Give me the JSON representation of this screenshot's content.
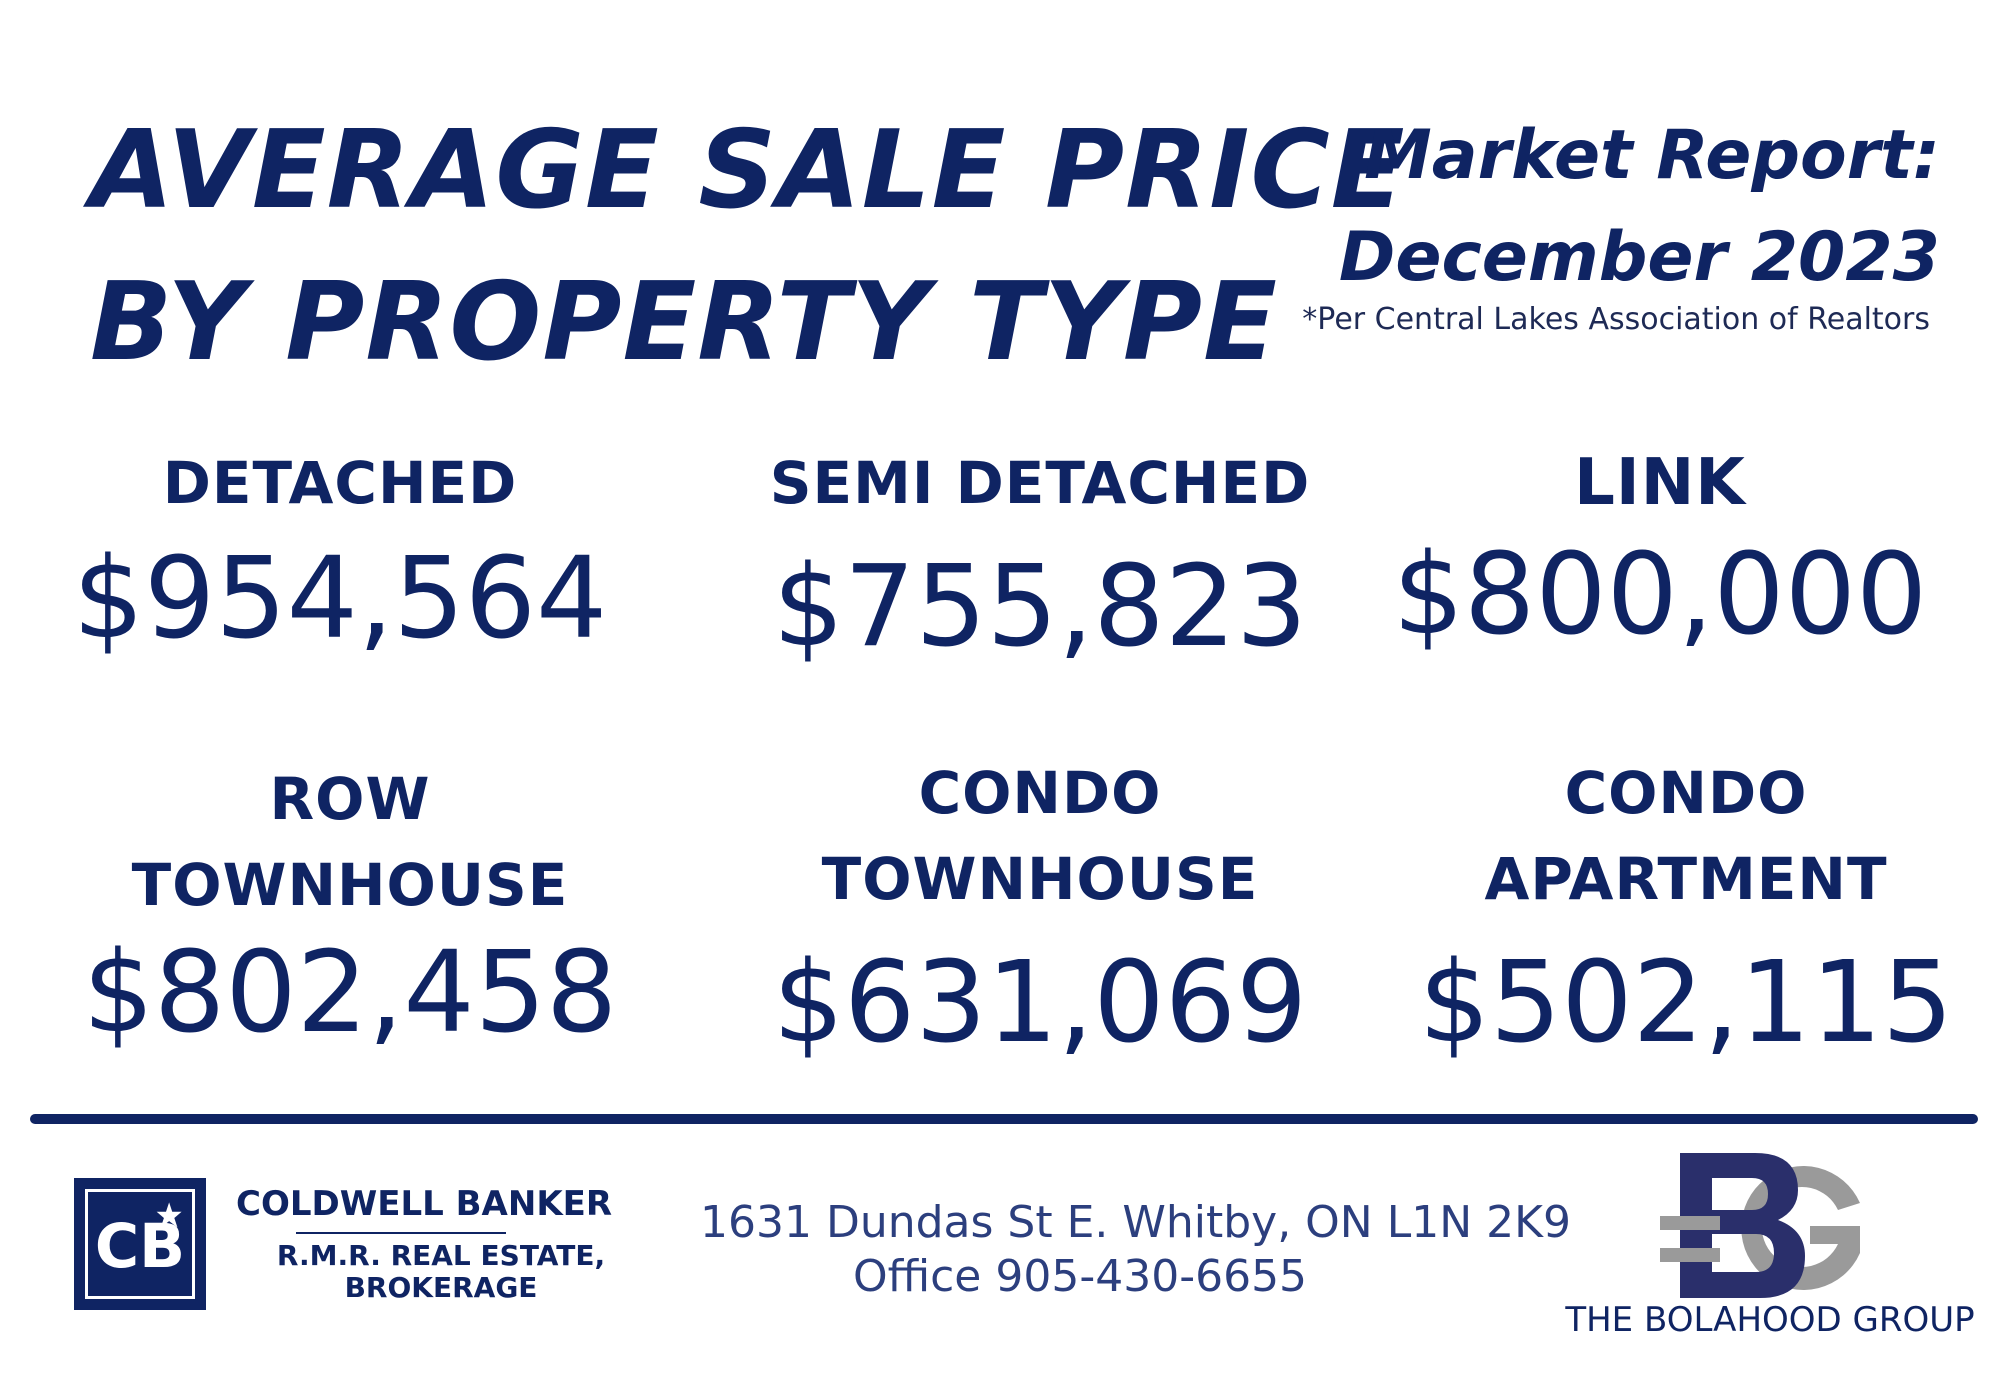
{
  "header": {
    "title_line1": "AVERAGE SALE PRICE",
    "title_line2": "BY PROPERTY TYPE",
    "report_line1": "Market Report:",
    "report_line2": "December 2023",
    "source_note": "*Per Central Lakes Association of Realtors"
  },
  "property_types": [
    {
      "label_line1": "DETACHED",
      "label_line2": "",
      "price": "$954,564"
    },
    {
      "label_line1": "SEMI DETACHED",
      "label_line2": "",
      "price": "$755,823"
    },
    {
      "label_line1": "LINK",
      "label_line2": "",
      "price": "$800,000"
    },
    {
      "label_line1": "ROW",
      "label_line2": "TOWNHOUSE",
      "price": "$802,458"
    },
    {
      "label_line1": "CONDO",
      "label_line2": "TOWNHOUSE",
      "price": "$631,069"
    },
    {
      "label_line1": "CONDO",
      "label_line2": "APARTMENT",
      "price": "$502,115"
    }
  ],
  "footer": {
    "brokerage_name": "COLDWELL BANKER",
    "brokerage_sub_line1": "R.M.R. REAL ESTATE,",
    "brokerage_sub_line2": "BROKERAGE",
    "logo_text": "CB",
    "address_line1": "1631 Dundas St E. Whitby, ON L1N 2K9",
    "address_line2": "Office 905-430-6655",
    "group_name": "THE BOLAHOOD GROUP",
    "group_logo_text": "BG"
  },
  "colors": {
    "navy": "#0f2463",
    "grey": "#9a9a9a",
    "background": "#ffffff"
  }
}
